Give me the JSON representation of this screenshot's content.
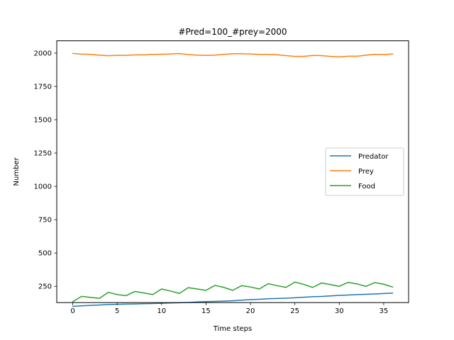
{
  "chart_data": {
    "type": "line",
    "title": "#Pred=100_#prey=2000",
    "xlabel": "Time steps",
    "ylabel": "Number",
    "xlim": [
      -1.8,
      37.8
    ],
    "ylim": [
      128,
      2092
    ],
    "xticks": [
      0,
      5,
      10,
      15,
      20,
      25,
      30,
      35
    ],
    "yticks": [
      250,
      500,
      750,
      1000,
      1250,
      1500,
      1750,
      2000
    ],
    "grid": false,
    "legend_position": "center-right",
    "x": [
      0,
      1,
      2,
      3,
      4,
      5,
      6,
      7,
      8,
      9,
      10,
      11,
      12,
      13,
      14,
      15,
      16,
      17,
      18,
      19,
      20,
      21,
      22,
      23,
      24,
      25,
      26,
      27,
      28,
      29,
      30,
      31,
      32,
      33,
      34,
      35,
      36
    ],
    "series": [
      {
        "name": "Predator",
        "color": "#1f77b4",
        "values": [
          100,
          104,
          107,
          110,
          114,
          115,
          117,
          118,
          120,
          121,
          123,
          125,
          127,
          129,
          133,
          136,
          137,
          139,
          142,
          146,
          150,
          153,
          157,
          159,
          161,
          164,
          168,
          172,
          174,
          178,
          182,
          185,
          188,
          190,
          193,
          196,
          199
        ]
      },
      {
        "name": "Prey",
        "color": "#ff7f0e",
        "values": [
          1997,
          1992,
          1990,
          1984,
          1980,
          1983,
          1983,
          1986,
          1986,
          1990,
          1991,
          1993,
          1996,
          1989,
          1984,
          1982,
          1984,
          1990,
          1995,
          1995,
          1993,
          1990,
          1990,
          1987,
          1981,
          1975,
          1975,
          1982,
          1981,
          1975,
          1971,
          1976,
          1976,
          1984,
          1990,
          1989,
          1993
        ]
      },
      {
        "name": "Food",
        "color": "#2ca02c",
        "values": [
          135,
          175,
          167,
          160,
          205,
          188,
          180,
          212,
          200,
          188,
          230,
          215,
          197,
          240,
          230,
          220,
          257,
          242,
          220,
          255,
          245,
          230,
          270,
          255,
          242,
          282,
          265,
          242,
          275,
          263,
          250,
          280,
          268,
          250,
          278,
          266,
          245
        ]
      }
    ]
  }
}
